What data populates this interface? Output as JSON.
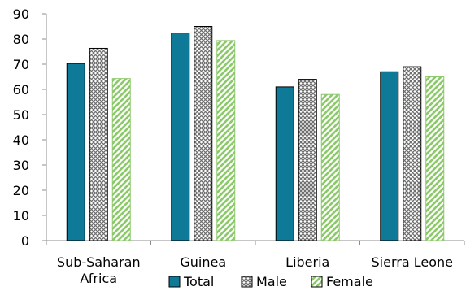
{
  "chart_data": {
    "type": "bar",
    "categories": [
      [
        "Sub-Saharan",
        "Africa"
      ],
      [
        "Guinea"
      ],
      [
        "Liberia"
      ],
      [
        "Sierra Leone"
      ]
    ],
    "series": [
      {
        "name": "Total",
        "values": [
          70.3,
          82.4,
          61.0,
          67.0
        ],
        "color": "#0E7A98",
        "pattern": "solid"
      },
      {
        "name": "Male",
        "values": [
          76.3,
          85.0,
          64.0,
          69.0
        ],
        "color": "#6E6E6E",
        "pattern": "crosshatch"
      },
      {
        "name": "Female",
        "values": [
          64.3,
          79.4,
          58.0,
          65.0
        ],
        "color": "#8CC96A",
        "pattern": "diagonal"
      }
    ],
    "title": "",
    "xlabel": "",
    "ylabel": "",
    "ylim": [
      0,
      90
    ],
    "yticks": [
      0,
      10,
      20,
      30,
      40,
      50,
      60,
      70,
      80,
      90
    ],
    "grid": false,
    "legend": "bottom"
  }
}
